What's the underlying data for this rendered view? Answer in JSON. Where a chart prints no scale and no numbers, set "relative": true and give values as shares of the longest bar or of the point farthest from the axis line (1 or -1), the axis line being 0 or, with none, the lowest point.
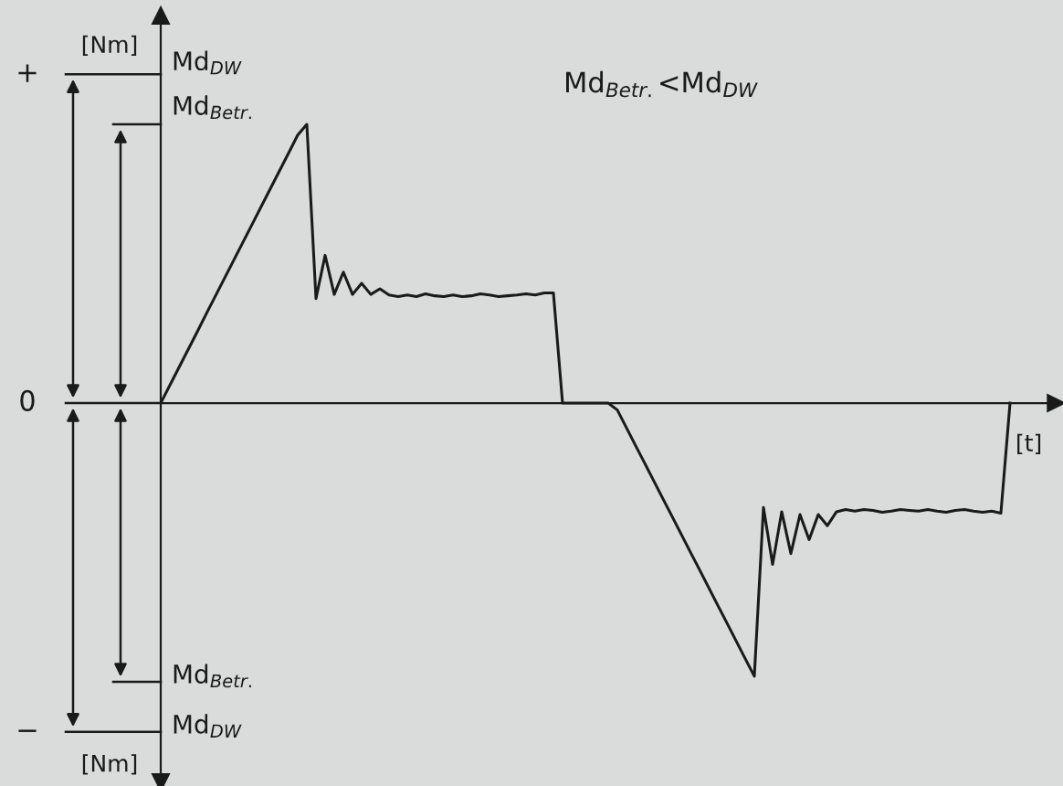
{
  "chart_data": {
    "type": "line",
    "ylabel": "[Nm]",
    "xlabel": "[t]",
    "legend": false,
    "marker": "none",
    "line_style": "solid",
    "relative": true,
    "annotations": [
      "+",
      "0",
      "−",
      "[Nm]",
      "Md$_{DW}$",
      "Md$_{Betr.}$",
      "Md$_{Betr.}$",
      "Md$_{DW}$",
      "Md$_{Betr.}$<Md$_{DW}$"
    ],
    "categories": [
      null,
      null,
      null,
      null,
      null,
      null,
      null,
      null,
      null,
      null,
      null,
      null,
      null,
      null,
      null,
      null,
      null,
      null,
      null,
      null,
      null,
      null,
      null,
      null,
      null,
      null,
      null,
      null,
      null,
      null,
      null,
      null,
      null,
      null,
      null,
      null,
      null,
      null,
      null,
      null,
      null,
      null,
      null,
      null,
      null,
      null,
      null,
      null,
      null,
      null,
      null,
      null,
      null,
      null,
      null,
      null,
      null,
      null,
      null,
      null,
      null,
      null,
      null,
      null,
      null,
      null,
      null,
      null,
      null,
      null,
      null,
      null,
      null,
      null,
      null,
      null,
      null,
      null,
      null,
      null,
      null,
      null,
      null,
      null,
      null,
      null,
      null,
      null,
      null,
      null,
      null,
      null,
      null,
      null
    ],
    "series": [
      {
        "color": "#1a1a1a",
        "values": [
          0,
          0.064,
          0.128,
          0.192,
          0.256,
          0.321,
          0.385,
          0.449,
          0.513,
          0.577,
          0.641,
          0.705,
          0.769,
          0.833,
          0.897,
          0.962,
          1.0,
          0.375,
          0.53,
          0.39,
          0.47,
          0.39,
          0.43,
          0.39,
          0.41,
          0.388,
          0.382,
          0.388,
          0.382,
          0.392,
          0.385,
          0.382,
          0.388,
          0.382,
          0.385,
          0.392,
          0.388,
          0.382,
          0.385,
          0.388,
          0.392,
          0.388,
          0.395,
          0.395,
          0,
          0,
          0,
          0,
          0,
          0,
          -0.025,
          -0.089,
          -0.153,
          -0.216,
          -0.28,
          -0.344,
          -0.407,
          -0.471,
          -0.535,
          -0.598,
          -0.662,
          -0.726,
          -0.789,
          -0.853,
          -0.917,
          -0.98,
          -0.375,
          -0.579,
          -0.39,
          -0.54,
          -0.4,
          -0.49,
          -0.4,
          -0.44,
          -0.39,
          -0.382,
          -0.388,
          -0.382,
          -0.385,
          -0.392,
          -0.388,
          -0.382,
          -0.385,
          -0.388,
          -0.382,
          -0.388,
          -0.392,
          -0.385,
          -0.382,
          -0.388,
          -0.392,
          -0.388,
          -0.395,
          0
        ]
      }
    ]
  }
}
